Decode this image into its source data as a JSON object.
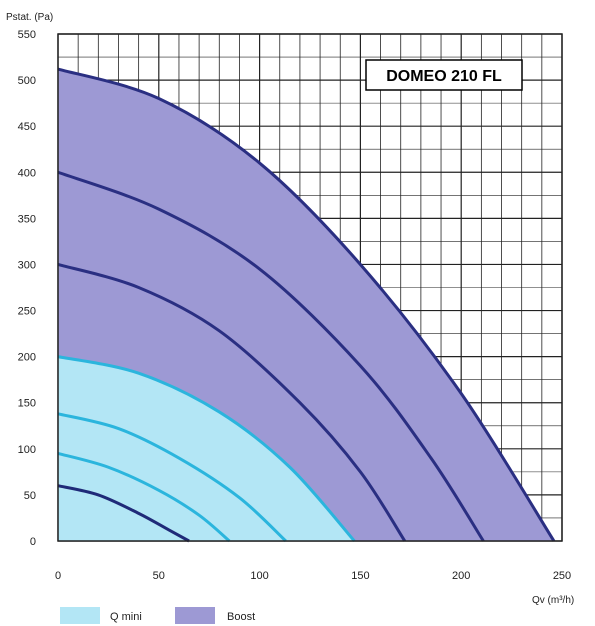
{
  "chart_data": {
    "type": "line",
    "title": "DOMEO 210 FL",
    "ylabel": "Pstat. (Pa)",
    "xlabel": "Qv (m³/h)",
    "xlim": [
      0,
      250
    ],
    "ylim": [
      0,
      550
    ],
    "x_ticks": [
      0,
      50,
      100,
      150,
      200,
      250
    ],
    "y_ticks": [
      0,
      50,
      100,
      150,
      200,
      250,
      300,
      350,
      400,
      450,
      500,
      550
    ],
    "grid": true,
    "legend_position": "bottom-left",
    "colors": {
      "q_mini_fill": "#b3e6f5",
      "boost_fill": "#9d99d4",
      "q_mini_line": "#2bb5dd",
      "boost_line": "#2a2f82",
      "grid": "#222222"
    },
    "legend": [
      {
        "label": "Q mini",
        "fill": "#b3e6f5"
      },
      {
        "label": "Boost",
        "fill": "#9d99d4"
      }
    ],
    "series": [
      {
        "group": "q_mini",
        "color": "#1f2a78",
        "x": [
          0,
          20,
          40,
          55,
          65
        ],
        "y": [
          60,
          50,
          30,
          12,
          0
        ]
      },
      {
        "group": "q_mini",
        "color": "#2bb5dd",
        "x": [
          0,
          25,
          50,
          70,
          85
        ],
        "y": [
          95,
          80,
          55,
          28,
          0
        ]
      },
      {
        "group": "q_mini",
        "color": "#2bb5dd",
        "x": [
          0,
          30,
          60,
          90,
          113
        ],
        "y": [
          138,
          122,
          90,
          47,
          0
        ]
      },
      {
        "group": "q_mini",
        "color": "#2bb5dd",
        "x": [
          0,
          40,
          80,
          115,
          147
        ],
        "y": [
          200,
          182,
          140,
          80,
          0
        ]
      },
      {
        "group": "boost",
        "color": "#2a2f82",
        "x": [
          0,
          40,
          80,
          120,
          150,
          172
        ],
        "y": [
          300,
          275,
          228,
          150,
          75,
          0
        ]
      },
      {
        "group": "boost",
        "color": "#2a2f82",
        "x": [
          0,
          50,
          100,
          150,
          185,
          211
        ],
        "y": [
          400,
          360,
          295,
          190,
          90,
          0
        ]
      },
      {
        "group": "boost",
        "color": "#2a2f82",
        "x": [
          0,
          50,
          100,
          150,
          200,
          246
        ],
        "y": [
          512,
          480,
          410,
          300,
          160,
          0
        ]
      }
    ]
  }
}
